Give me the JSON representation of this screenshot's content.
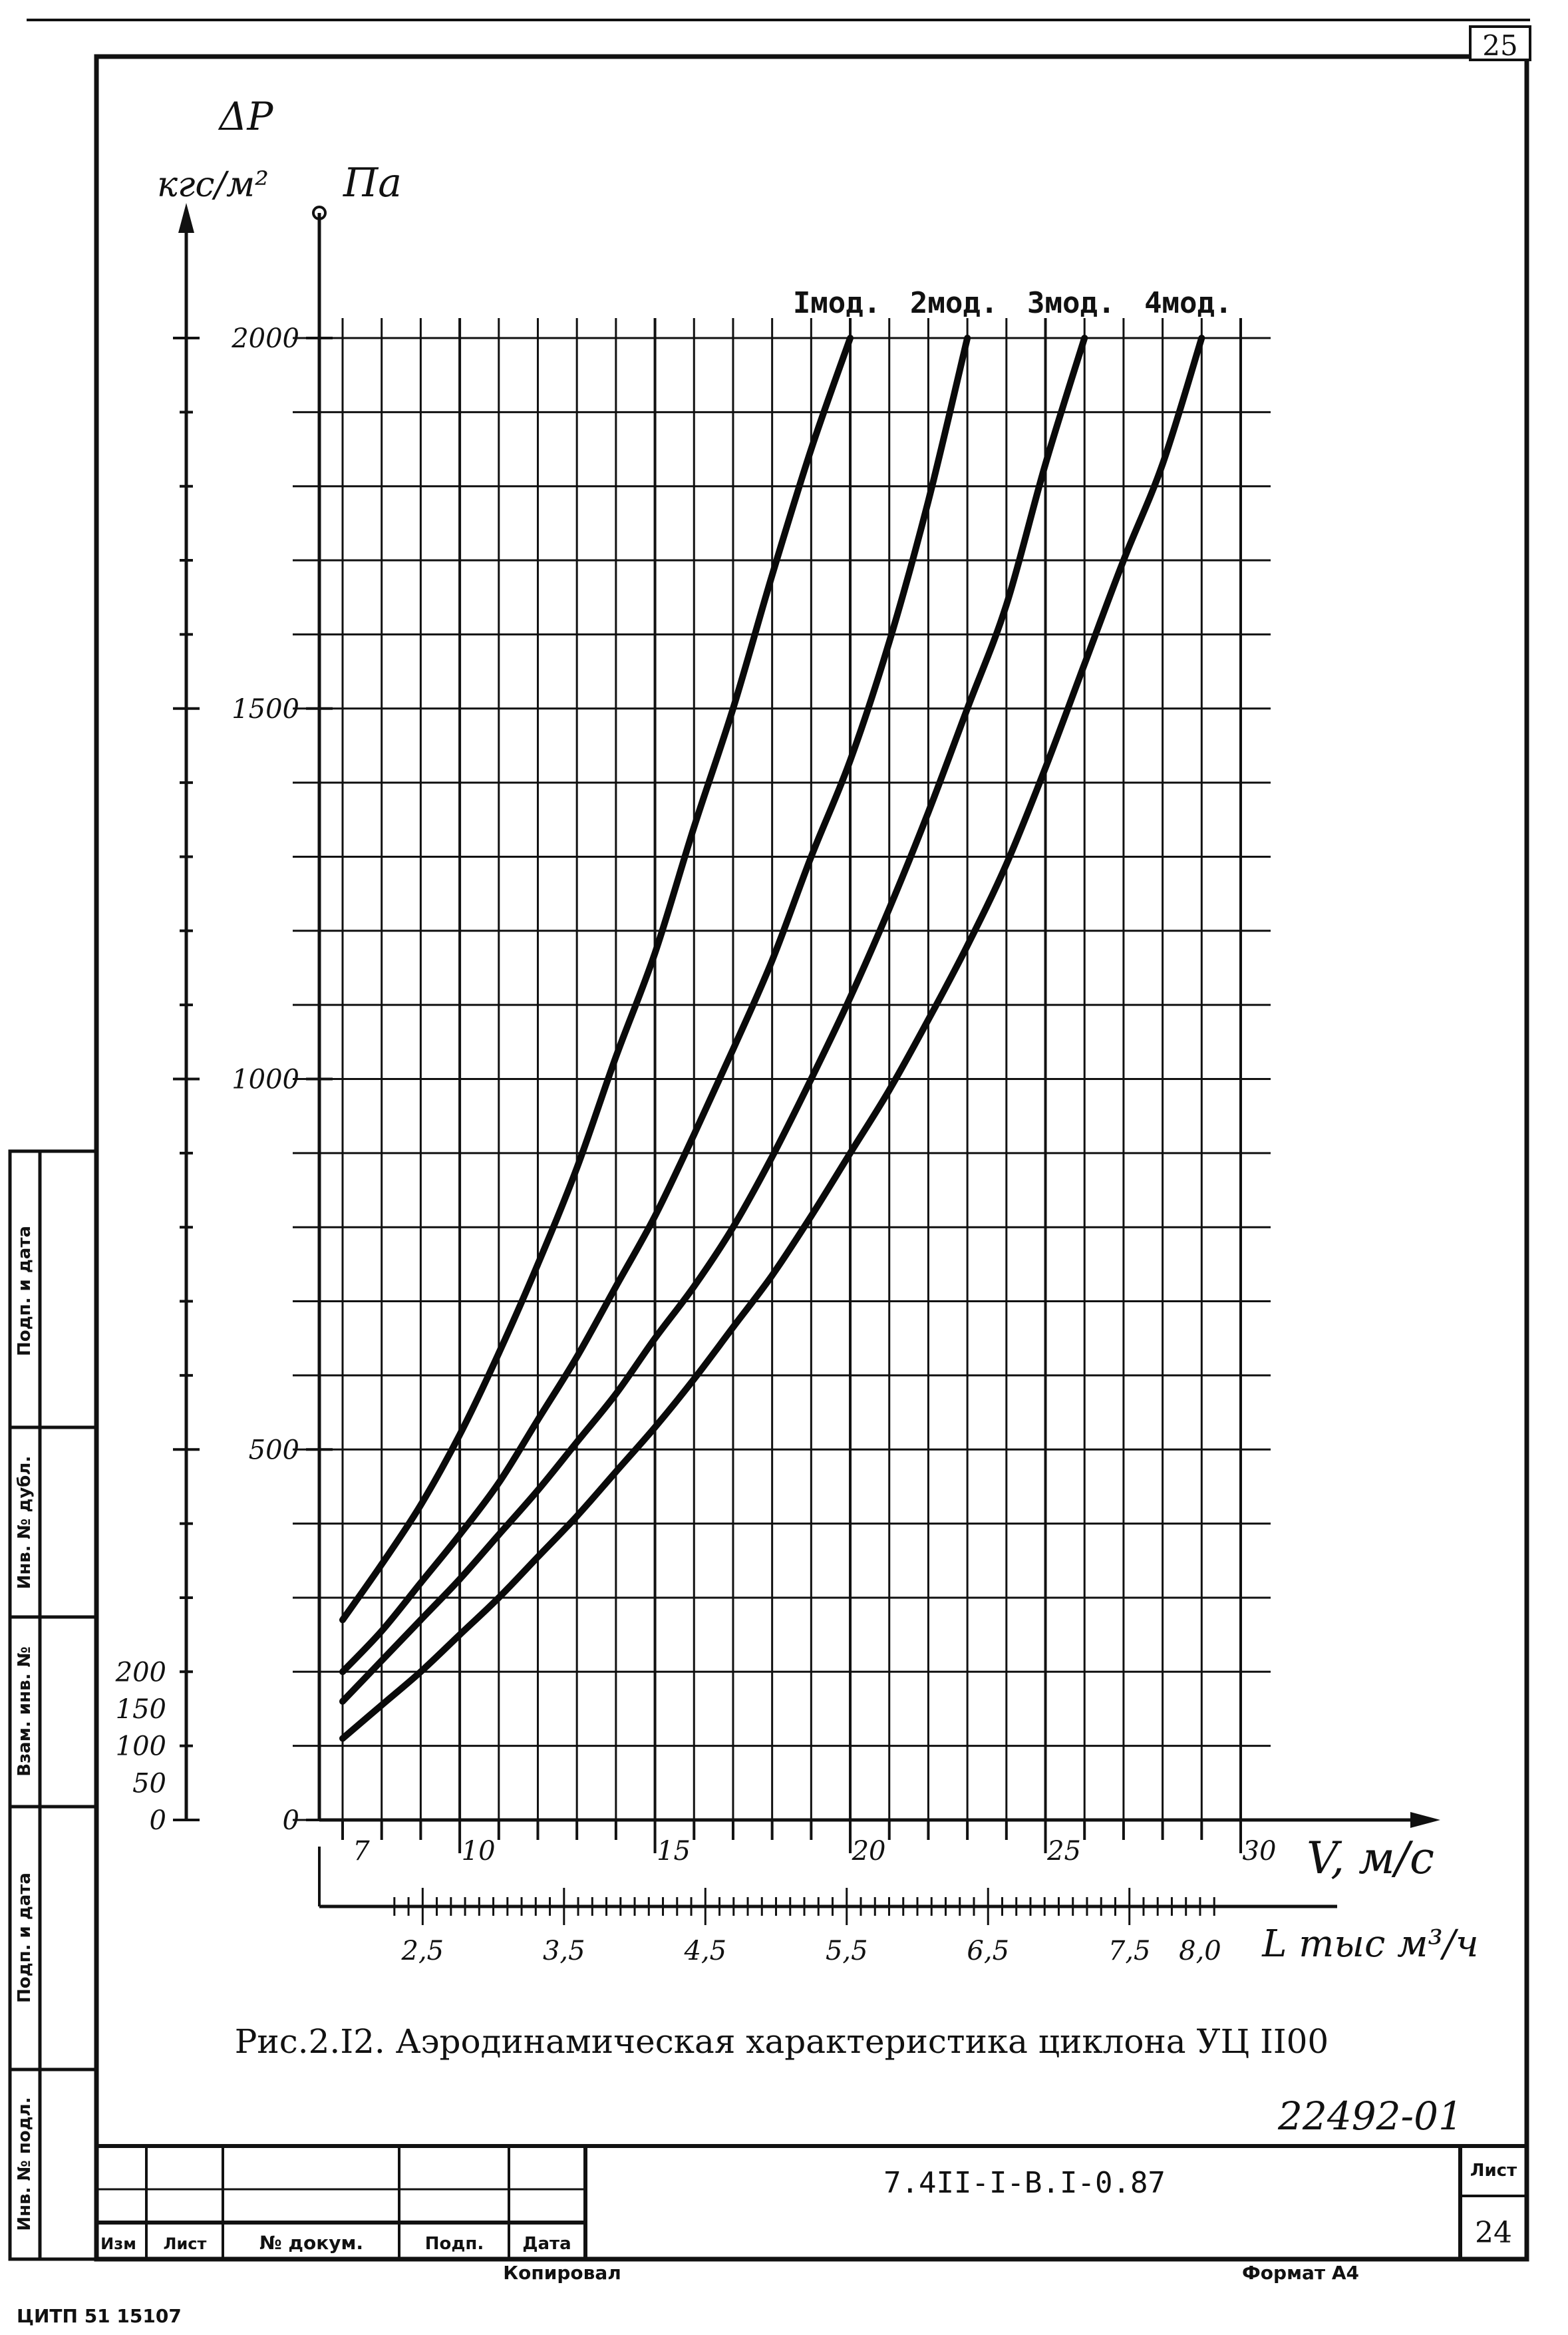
{
  "page_number": "25",
  "chart_data": {
    "type": "line",
    "title": "Рис.2.I2. Аэродинамическая характеристика циклона УЦ II00",
    "ylabel_symbol": "ΔP",
    "yunit_left": "кгс/м²",
    "yunit_right": "Па",
    "xlabel": "V, м/с",
    "x2label": "L тыс м³/ч",
    "xlim": [
      7,
      30
    ],
    "ylim": [
      0,
      2000
    ],
    "y_left_ticks": [
      {
        "value": 0,
        "label": "0"
      },
      {
        "value": 50,
        "label": "50"
      },
      {
        "value": 100,
        "label": "100"
      },
      {
        "value": 150,
        "label": "150"
      },
      {
        "value": 200,
        "label": "200"
      }
    ],
    "y_right_ticks": [
      {
        "value": 0,
        "label": "0"
      },
      {
        "value": 500,
        "label": "500"
      },
      {
        "value": 1000,
        "label": "1000"
      },
      {
        "value": 1500,
        "label": "1500"
      },
      {
        "value": 2000,
        "label": "2000"
      }
    ],
    "x_ticks": [
      {
        "value": 7,
        "label": "7"
      },
      {
        "value": 10,
        "label": "10"
      },
      {
        "value": 15,
        "label": "15"
      },
      {
        "value": 20,
        "label": "20"
      },
      {
        "value": 25,
        "label": "25"
      },
      {
        "value": 30,
        "label": "30"
      }
    ],
    "x2_ticks": [
      {
        "value": 2.5,
        "label": "2,5"
      },
      {
        "value": 3.5,
        "label": "3,5"
      },
      {
        "value": 4.5,
        "label": "4,5"
      },
      {
        "value": 5.5,
        "label": "5,5"
      },
      {
        "value": 6.5,
        "label": "6,5"
      },
      {
        "value": 7.5,
        "label": "7,5"
      },
      {
        "value": 8.0,
        "label": "8,0"
      }
    ],
    "series": [
      {
        "name": "Iмод.",
        "x": [
          7,
          8,
          9,
          10,
          11,
          12,
          13,
          14,
          15,
          16,
          17,
          18,
          19,
          20
        ],
        "y": [
          270,
          345,
          425,
          520,
          630,
          750,
          880,
          1030,
          1170,
          1340,
          1500,
          1680,
          1850,
          2000
        ]
      },
      {
        "name": "2мод.",
        "x": [
          7,
          8,
          9,
          10,
          11,
          12,
          13,
          14,
          15,
          16,
          17,
          18,
          19,
          20,
          21,
          22,
          23
        ],
        "y": [
          200,
          255,
          320,
          385,
          455,
          540,
          625,
          720,
          815,
          925,
          1040,
          1160,
          1300,
          1430,
          1590,
          1780,
          2000
        ]
      },
      {
        "name": "3мод.",
        "x": [
          7,
          8,
          9,
          10,
          11,
          12,
          13,
          14,
          15,
          16,
          17,
          18,
          19,
          20,
          21,
          22,
          23,
          24,
          25,
          26
        ],
        "y": [
          160,
          215,
          270,
          325,
          385,
          445,
          510,
          575,
          650,
          720,
          800,
          895,
          1000,
          1110,
          1230,
          1360,
          1500,
          1640,
          1830,
          2000
        ]
      },
      {
        "name": "4мод.",
        "x": [
          7,
          8,
          9,
          10,
          11,
          12,
          13,
          14,
          15,
          16,
          17,
          18,
          19,
          20,
          21,
          22,
          23,
          24,
          25,
          26,
          27,
          28,
          29
        ],
        "y": [
          110,
          155,
          200,
          250,
          300,
          355,
          410,
          470,
          530,
          595,
          665,
          735,
          815,
          900,
          985,
          1080,
          1180,
          1290,
          1420,
          1560,
          1700,
          1830,
          2000
        ]
      }
    ]
  },
  "doc_number": "22492-01",
  "title_block": {
    "code": "7.4II-I-B.I-0.87",
    "sheet_label": "Лист",
    "sheet_number": "24",
    "col_izm": "Изм",
    "col_list": "Лист",
    "col_doc": "№ докум.",
    "col_sign": "Подп.",
    "col_date": "Дата",
    "copied": "Копировал",
    "format": "Формат А4"
  },
  "side_labels": {
    "sign_date": "Подп. и дата",
    "inv_dubl": "Инв. № дубл.",
    "vzam_inv": "Взам. инв. №",
    "sign_date2": "Подп. и дата",
    "inv_podl": "Инв. № подл."
  },
  "footer_stamp": "ЦИТП 51 15107"
}
